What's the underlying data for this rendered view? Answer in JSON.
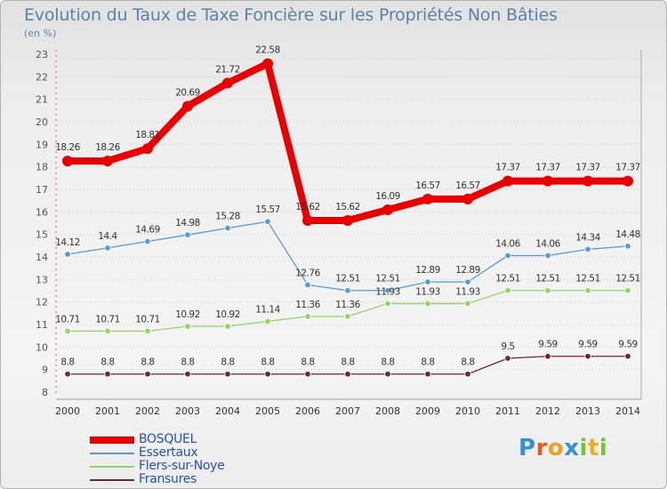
{
  "title": "Evolution du Taux de Taxe Foncière sur les Propriétés Non Bâties",
  "unit_label": "(en %)",
  "brand": {
    "text": "Proxiti",
    "letters": [
      "P",
      "r",
      "o",
      "x",
      "i",
      "t",
      "i"
    ]
  },
  "chart_data": {
    "type": "line",
    "title": "Evolution du Taux de Taxe Foncière sur les Propriétés Non Bâties",
    "ylabel": "(en %)",
    "xlabel": "",
    "ylim": [
      8,
      23
    ],
    "yticks": [
      8,
      9,
      10,
      11,
      12,
      13,
      14,
      15,
      16,
      17,
      18,
      19,
      20,
      21,
      22,
      23
    ],
    "categories": [
      "2000",
      "2001",
      "2002",
      "2003",
      "2004",
      "2005",
      "2006",
      "2007",
      "2008",
      "2009",
      "2010",
      "2011",
      "2012",
      "2013",
      "2014"
    ],
    "grid": "dotted-horizontal",
    "legend_position": "bottom-left",
    "series": [
      {
        "name": "BOSQUEL",
        "color": "#e80000",
        "values": [
          18.26,
          18.26,
          18.81,
          20.69,
          21.72,
          22.58,
          15.62,
          15.62,
          16.09,
          16.57,
          16.57,
          17.37,
          17.37,
          17.37,
          17.37
        ],
        "labels": [
          "18.26",
          "18.26",
          "18.81",
          "20.69",
          "21.72",
          "22.58",
          "15.62",
          "15.62",
          "16.09",
          "16.57",
          "16.57",
          "17.37",
          "17.37",
          "17.37",
          "17.37"
        ]
      },
      {
        "name": "Essertaux",
        "color": "#5a9ad2",
        "values": [
          14.12,
          14.4,
          14.69,
          14.98,
          15.28,
          15.57,
          12.76,
          12.51,
          12.51,
          12.89,
          12.89,
          14.06,
          14.06,
          14.34,
          14.48
        ],
        "labels": [
          "14.12",
          "14.4",
          "14.69",
          "14.98",
          "15.28",
          "15.57",
          "12.76",
          "12.51",
          "12.51",
          "12.89",
          "12.89",
          "14.06",
          "14.06",
          "14.34",
          "14.48"
        ]
      },
      {
        "name": "Flers-sur-Noye",
        "color": "#96d264",
        "values": [
          10.71,
          10.71,
          10.71,
          10.92,
          10.92,
          11.14,
          11.36,
          11.36,
          11.93,
          11.93,
          11.93,
          12.51,
          12.51,
          12.51,
          12.51
        ],
        "labels": [
          "10.71",
          "10.71",
          "10.71",
          "10.92",
          "10.92",
          "11.14",
          "11.36",
          "11.36",
          "11.93",
          "11.93",
          "11.93",
          "12.51",
          "12.51",
          "12.51",
          "12.51"
        ]
      },
      {
        "name": "Fransures",
        "color": "#6e2a2a",
        "values": [
          8.8,
          8.8,
          8.8,
          8.8,
          8.8,
          8.8,
          8.8,
          8.8,
          8.8,
          8.8,
          8.8,
          9.5,
          9.59,
          9.59,
          9.59
        ],
        "labels": [
          "8.8",
          "8.8",
          "8.8",
          "8.8",
          "8.8",
          "8.8",
          "8.8",
          "8.8",
          "8.8",
          "8.8",
          "8.8",
          "9.5",
          "9.59",
          "9.59",
          "9.59"
        ]
      }
    ]
  }
}
